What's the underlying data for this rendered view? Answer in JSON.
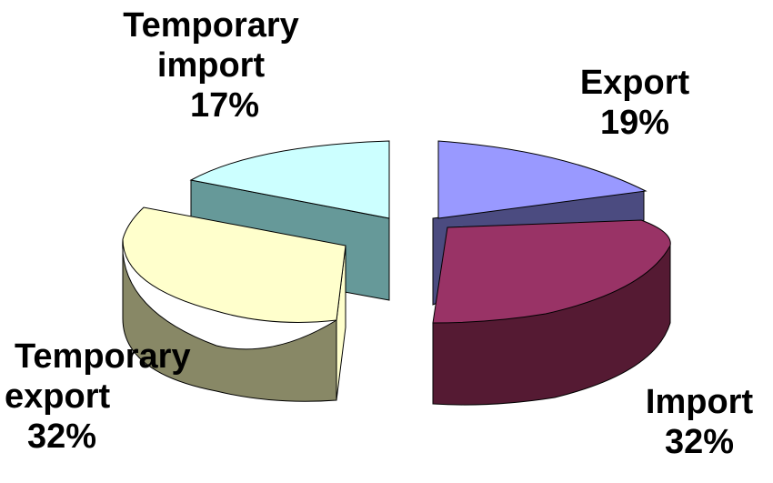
{
  "chart_data": {
    "type": "pie",
    "three_d": true,
    "exploded": true,
    "legend": "none",
    "slices": [
      {
        "label": "Export",
        "value": 19,
        "value_label": "19%",
        "color": "#9999FF"
      },
      {
        "label": "Import",
        "value": 32,
        "value_label": "32%",
        "color": "#993366"
      },
      {
        "label": "Temporary export",
        "value": 32,
        "value_label": "32%",
        "color": "#FFFFCC"
      },
      {
        "label": "Temporary import",
        "value": 17,
        "value_label": "17%",
        "color": "#CCFFFF"
      }
    ]
  },
  "labels": {
    "export": {
      "line1": "Export",
      "pct": "19%"
    },
    "import": {
      "line1": "Import",
      "pct": "32%"
    },
    "temp_export": {
      "line1": "Temporary",
      "line2": "export",
      "pct": "32%"
    },
    "temp_import": {
      "line1": "Temporary",
      "line2": "import",
      "pct": "17%"
    }
  }
}
